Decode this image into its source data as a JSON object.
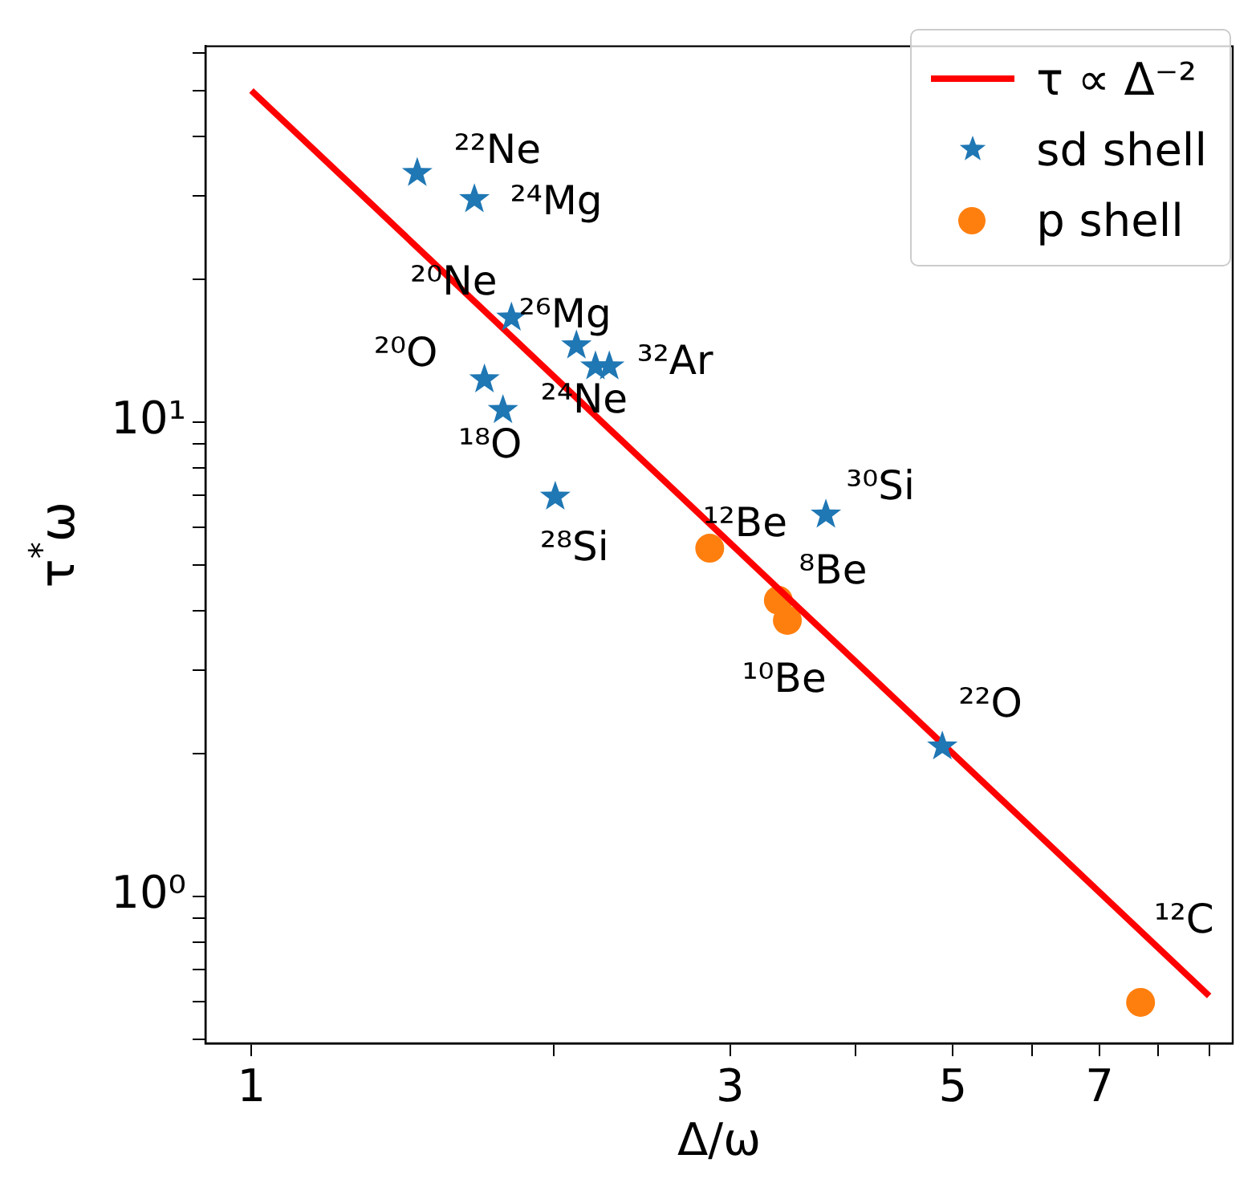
{
  "chart_data": {
    "type": "scatter",
    "xlabel": "Δ/ω",
    "ylabel": "τ$^{*}$ω",
    "log": "xy",
    "grid": false,
    "legend": "top right",
    "xlim": [
      0.9,
      9.5
    ],
    "ylim": [
      0.49,
      62
    ],
    "xticks": [
      1,
      {
        "value": 2,
        "label": null
      },
      3,
      {
        "value": 4,
        "label": null
      },
      5,
      {
        "value": 6,
        "label": null
      },
      7,
      {
        "value": 8,
        "label": null
      },
      {
        "value": 9,
        "label": null
      }
    ],
    "yticks": [
      {
        "value": 0.5,
        "label": null
      },
      {
        "value": 0.6,
        "label": null
      },
      {
        "value": 0.7,
        "label": null
      },
      {
        "value": 0.8,
        "label": null
      },
      {
        "value": 0.9,
        "label": null
      },
      {
        "value": 1,
        "label": "10⁰"
      },
      {
        "value": 2,
        "label": null
      },
      {
        "value": 3,
        "label": null
      },
      {
        "value": 4,
        "label": null
      },
      {
        "value": 5,
        "label": null
      },
      {
        "value": 6,
        "label": null
      },
      {
        "value": 7,
        "label": null
      },
      {
        "value": 8,
        "label": null
      },
      {
        "value": 9,
        "label": null
      },
      {
        "value": 10,
        "label": "10¹"
      },
      {
        "value": 20,
        "label": null
      },
      {
        "value": 30,
        "label": null
      },
      {
        "value": 40,
        "label": null
      },
      {
        "value": 50,
        "label": null
      },
      {
        "value": 60,
        "label": null
      }
    ],
    "series": [
      {
        "name": "τ ∝ Δ⁻²",
        "type": "line",
        "color": "#ff0000",
        "marker": "none",
        "x": [
          1,
          9
        ],
        "values": [
          50,
          0.617
        ]
      },
      {
        "name": "sd shell",
        "type": "scatter",
        "color": "#1f77b4",
        "marker": "star",
        "x": [
          1.463,
          1.668,
          1.816,
          2.108,
          2.202,
          2.273,
          1.707,
          1.781,
          2.008,
          3.736,
          4.88
        ],
        "values": [
          33.5,
          29.5,
          16.6,
          14.5,
          13.1,
          13.1,
          12.3,
          10.6,
          6.96,
          6.38,
          2.07
        ]
      },
      {
        "name": "p shell",
        "type": "scatter",
        "color": "#ff7f0e",
        "marker": "circle",
        "x": [
          2.862,
          3.35,
          3.42,
          7.69
        ],
        "values": [
          5.42,
          4.21,
          3.82,
          0.598
        ]
      }
    ],
    "annotations": [
      {
        "text": "²²Ne",
        "x": 1.463,
        "y": 33.5
      },
      {
        "text": "²⁴Mg",
        "x": 1.668,
        "y": 29.5
      },
      {
        "text": "²⁰Ne",
        "x": 1.816,
        "y": 16.6
      },
      {
        "text": "²⁶Mg",
        "x": 2.108,
        "y": 14.5
      },
      {
        "text": "²⁰O",
        "x": 1.707,
        "y": 12.3
      },
      {
        "text": "³²Ar",
        "x": 2.273,
        "y": 13.1
      },
      {
        "text": "²⁴Ne",
        "x": 2.202,
        "y": 13.1
      },
      {
        "text": "¹⁸O",
        "x": 1.781,
        "y": 10.6
      },
      {
        "text": "²⁸Si",
        "x": 2.008,
        "y": 6.96
      },
      {
        "text": "¹²Be",
        "x": 2.862,
        "y": 5.42
      },
      {
        "text": "⁸Be",
        "x": 3.35,
        "y": 4.21
      },
      {
        "text": "¹⁰Be",
        "x": 3.42,
        "y": 3.82
      },
      {
        "text": "³⁰Si",
        "x": 3.736,
        "y": 6.38
      },
      {
        "text": "²²O",
        "x": 4.88,
        "y": 2.07
      },
      {
        "text": "¹²C",
        "x": 7.69,
        "y": 0.598
      }
    ]
  }
}
